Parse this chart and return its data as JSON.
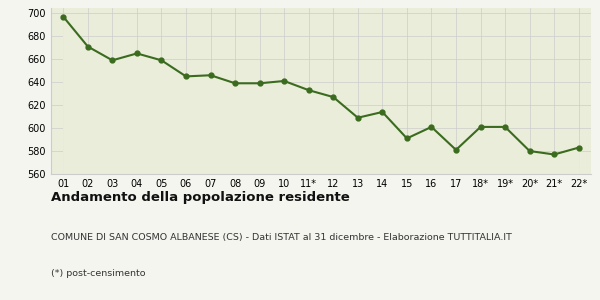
{
  "x_labels": [
    "01",
    "02",
    "03",
    "04",
    "05",
    "06",
    "07",
    "08",
    "09",
    "10",
    "11*",
    "12",
    "13",
    "14",
    "15",
    "16",
    "17",
    "18*",
    "19*",
    "20*",
    "21*",
    "22*"
  ],
  "y_values": [
    697,
    671,
    659,
    665,
    659,
    645,
    646,
    639,
    639,
    641,
    633,
    627,
    609,
    614,
    591,
    601,
    581,
    601,
    601,
    580,
    577,
    583
  ],
  "line_color": "#3a6b1e",
  "fill_color": "#eaedda",
  "marker": "o",
  "marker_size": 3.5,
  "line_width": 1.5,
  "ylim": [
    560,
    705
  ],
  "yticks": [
    560,
    580,
    600,
    620,
    640,
    660,
    680,
    700
  ],
  "title": "Andamento della popolazione residente",
  "subtitle": "COMUNE DI SAN COSMO ALBANESE (CS) - Dati ISTAT al 31 dicembre - Elaborazione TUTTITALIA.IT",
  "footnote": "(*) post-censimento",
  "title_fontsize": 9.5,
  "subtitle_fontsize": 6.8,
  "footnote_fontsize": 6.8,
  "tick_fontsize": 7.0,
  "grid_color": "#cccccc",
  "background_color": "#f5f5f0"
}
